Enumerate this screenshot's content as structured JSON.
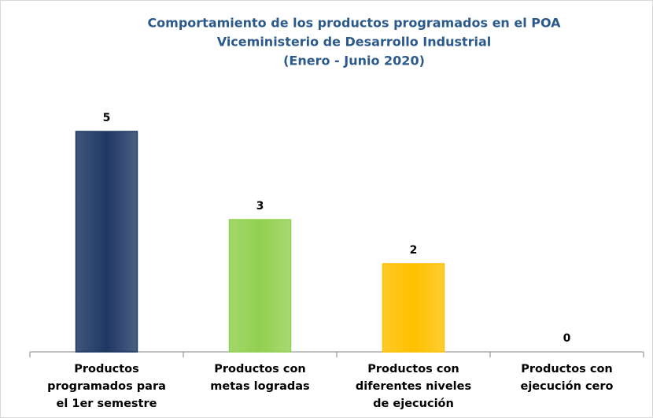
{
  "chart_data": {
    "type": "bar",
    "title": [
      "Comportamiento de los productos programados en el POA",
      "Viceministerio de Desarrollo Industrial",
      "(Enero - Junio 2020)"
    ],
    "categories": [
      "Productos\nprogramados para\nel 1er semestre",
      "Productos con\nmetas logradas",
      "Productos con\ndiferentes niveles\nde ejecución",
      "Productos con\nejecución cero"
    ],
    "values": [
      5,
      3,
      2,
      0
    ],
    "colors": [
      "#1f3864",
      "#92d050",
      "#ffc000",
      "#4472c4"
    ]
  }
}
